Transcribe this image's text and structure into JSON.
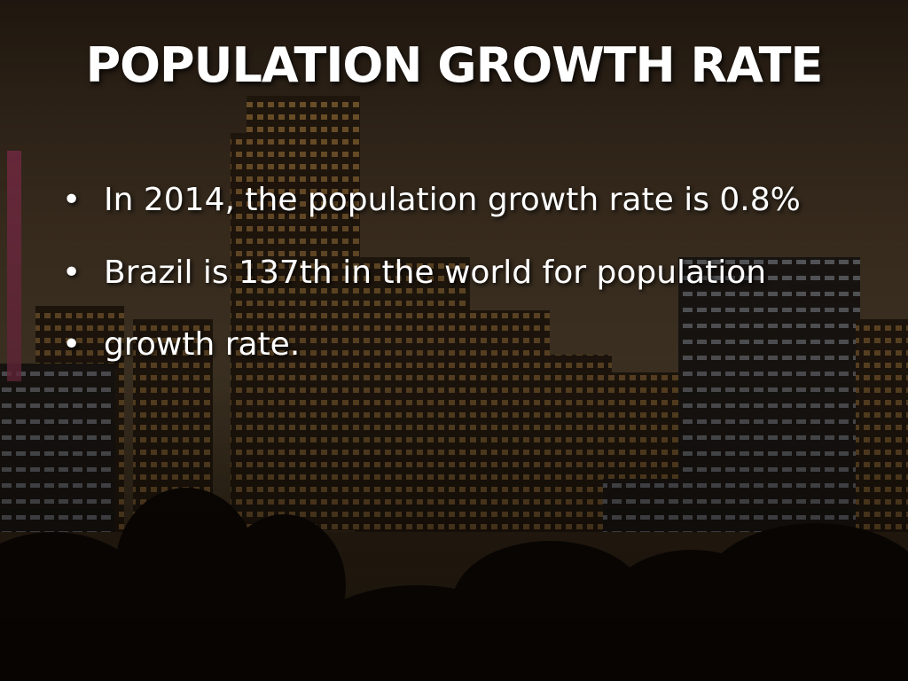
{
  "slide": {
    "title": "POPULATION GROWTH RATE",
    "bullets": [
      "In 2014, the population growth rate is 0.8%",
      "Brazil is 137th in the world for population",
      "growth rate."
    ]
  }
}
